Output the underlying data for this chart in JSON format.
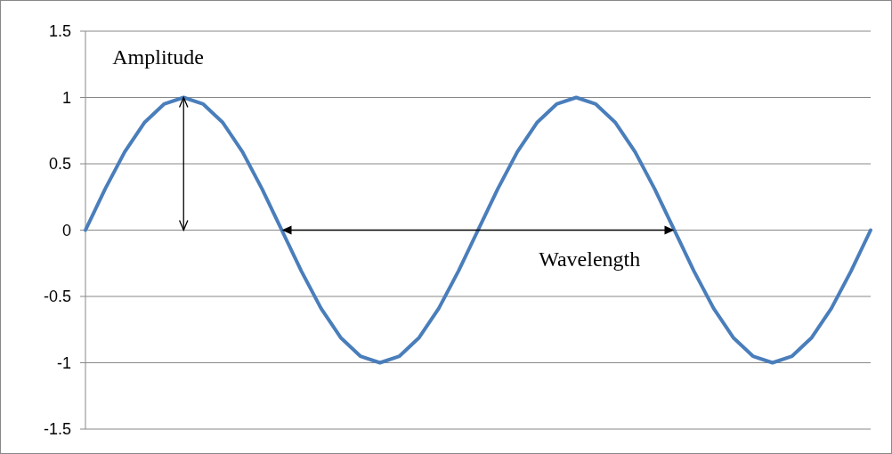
{
  "chart_data": {
    "type": "line",
    "categories": [
      null,
      null,
      null,
      null,
      null,
      null,
      null,
      null,
      null,
      null,
      null,
      null,
      null,
      null,
      null,
      null,
      null,
      null,
      null,
      null,
      null,
      null,
      null,
      null,
      null,
      null,
      null,
      null,
      null,
      null,
      null,
      null,
      null,
      null,
      null,
      null,
      null,
      null,
      null,
      null,
      null
    ],
    "series": [
      {
        "color": "#4a7ebb",
        "values": [
          0,
          0.31,
          0.59,
          0.81,
          0.95,
          1,
          0.95,
          0.81,
          0.59,
          0.31,
          0,
          -0.31,
          -0.59,
          -0.81,
          -0.95,
          -1,
          -0.95,
          -0.81,
          -0.59,
          -0.31,
          0,
          0.31,
          0.59,
          0.81,
          0.95,
          1,
          0.95,
          0.81,
          0.59,
          0.31,
          0,
          -0.31,
          -0.59,
          -0.81,
          -0.95,
          -1,
          -0.95,
          -0.81,
          -0.59,
          -0.31,
          0
        ]
      }
    ],
    "ylim": [
      -1.5,
      1.5
    ],
    "yticks": [
      -1.5,
      -1,
      -0.5,
      0,
      0.5,
      1,
      1.5
    ],
    "grid": "y",
    "marker": "none",
    "line_style": "solid",
    "tick_labels": "y",
    "annotations": [
      "Amplitude",
      "Wavelength"
    ]
  }
}
